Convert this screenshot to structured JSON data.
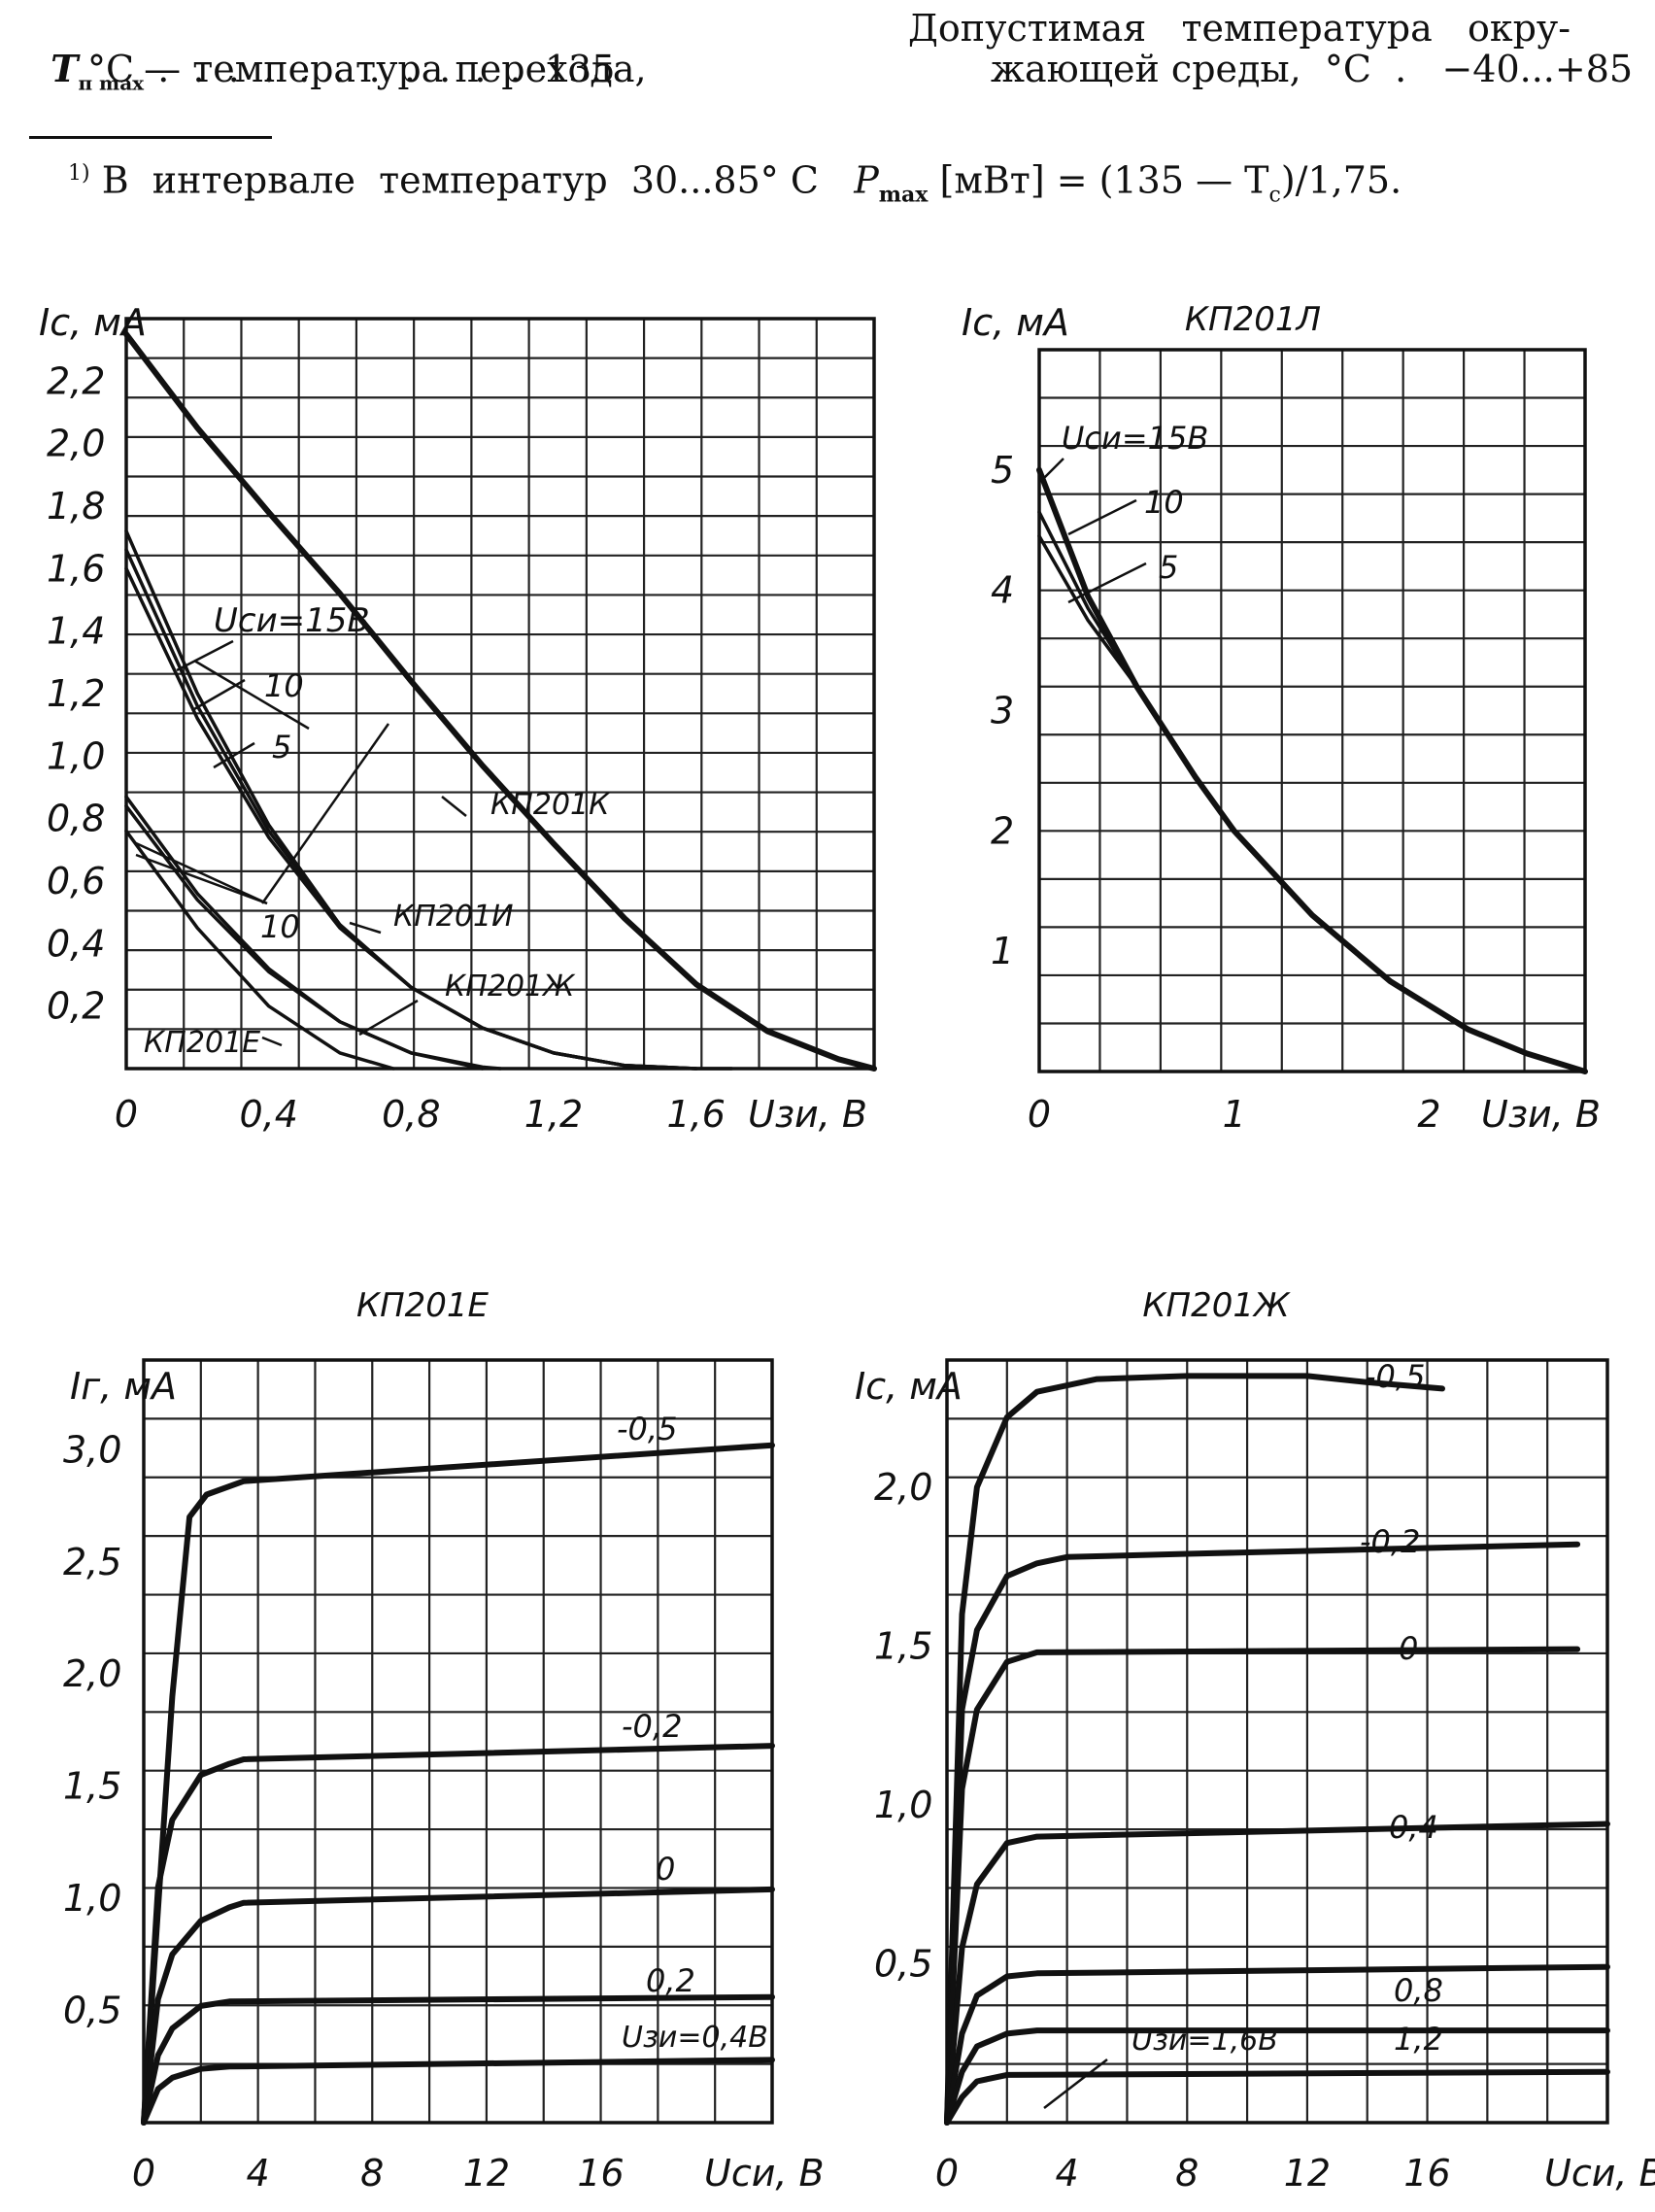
{
  "header": {
    "line1_left_sym": "T",
    "line1_left_sub": "п max",
    "line1_left_text": "— температура перехода,",
    "line2_left_text": "°С  .  .  .  .  .  .  .  .  .  .  .  135",
    "line1_right_text": "Допустимая   температура   окру-",
    "line2_right_text": "жающей среды,  °С  .   −40...+85",
    "footnote_mark": "1)",
    "footnote_text": "В  интервале  температур  30...85° С",
    "footnote_formula": "P",
    "footnote_formula_sub": "max",
    "footnote_formula_rest": " [мВт] = (135 — T",
    "footnote_formula_sub2": "с",
    "footnote_formula_end": ")/1,75."
  },
  "chart_data": [
    {
      "id": "transfer_KEZHIK",
      "type": "line",
      "title": "",
      "ylabel": "I_c, мА",
      "xlabel": "U_зи, В",
      "xlim": [
        0,
        2.1
      ],
      "ylim": [
        0,
        2.4
      ],
      "xticks": [
        "0",
        "0,4",
        "0,8",
        "1,2",
        "1,6"
      ],
      "xtick_values": [
        0,
        0.4,
        0.8,
        1.2,
        1.6
      ],
      "yticks": [
        "0,2",
        "0,4",
        "0,6",
        "0,8",
        "1,0",
        "1,2",
        "1,4",
        "1,6",
        "1,8",
        "2,0",
        "2,2"
      ],
      "ytick_values": [
        0.2,
        0.4,
        0.6,
        0.8,
        1.0,
        1.2,
        1.4,
        1.6,
        1.8,
        2.0,
        2.2
      ],
      "grid": true,
      "series": [
        {
          "name": "КП201К",
          "x": [
            0,
            0.2,
            0.4,
            0.6,
            0.8,
            1.0,
            1.2,
            1.4,
            1.6,
            1.8,
            2.0,
            2.1
          ],
          "y": [
            2.35,
            2.05,
            1.78,
            1.52,
            1.24,
            0.97,
            0.72,
            0.48,
            0.27,
            0.12,
            0.03,
            0.0
          ]
        },
        {
          "name": "КП201И U_си=15В",
          "x": [
            0,
            0.2,
            0.4,
            0.6,
            0.8,
            1.0,
            1.2,
            1.4,
            1.6,
            1.7
          ],
          "y": [
            1.72,
            1.2,
            0.78,
            0.46,
            0.26,
            0.13,
            0.05,
            0.01,
            0.0,
            0.0
          ]
        },
        {
          "name": "КП201И U_си=10",
          "x": [
            0,
            0.2,
            0.4,
            0.6,
            0.8,
            1.0,
            1.2,
            1.4,
            1.6
          ],
          "y": [
            1.66,
            1.16,
            0.76,
            0.46,
            0.26,
            0.13,
            0.05,
            0.01,
            0.0
          ]
        },
        {
          "name": "КП201И U_си=5",
          "x": [
            0,
            0.2,
            0.4,
            0.6,
            0.8,
            1.0,
            1.2,
            1.4,
            1.6
          ],
          "y": [
            1.6,
            1.12,
            0.74,
            0.45,
            0.26,
            0.13,
            0.05,
            0.01,
            0.0
          ]
        },
        {
          "name": "КП201Ж",
          "x": [
            0,
            0.2,
            0.4,
            0.6,
            0.8,
            1.0,
            1.05
          ],
          "y": [
            0.87,
            0.56,
            0.32,
            0.15,
            0.05,
            0.005,
            0.0
          ]
        },
        {
          "name": "КП201Ж U_си=10",
          "x": [
            0,
            0.2,
            0.4,
            0.6,
            0.8,
            1.0
          ],
          "y": [
            0.84,
            0.54,
            0.31,
            0.15,
            0.05,
            0.0
          ]
        },
        {
          "name": "КП201Е",
          "x": [
            0,
            0.2,
            0.4,
            0.6,
            0.75
          ],
          "y": [
            0.76,
            0.45,
            0.2,
            0.05,
            0.0
          ]
        }
      ],
      "annotations": [
        "U_си=15В",
        "10",
        "5",
        "10",
        "КП201К",
        "КП201И",
        "КП201Ж",
        "КП201Е"
      ]
    },
    {
      "id": "transfer_L",
      "type": "line",
      "title": "КП201Л",
      "ylabel": "I_c, мА",
      "xlabel": "U_зи, В",
      "xlim": [
        0,
        2.8
      ],
      "ylim": [
        0,
        6
      ],
      "xticks": [
        "0",
        "1",
        "2"
      ],
      "xtick_values": [
        0,
        1,
        2
      ],
      "yticks": [
        "1",
        "2",
        "3",
        "4",
        "5"
      ],
      "ytick_values": [
        1,
        2,
        3,
        4,
        5
      ],
      "grid": true,
      "series": [
        {
          "name": "U_си=15В",
          "x": [
            0,
            0.25,
            0.5,
            0.8,
            1.0,
            1.4,
            1.8,
            2.2,
            2.5,
            2.8
          ],
          "y": [
            5.0,
            3.95,
            3.2,
            2.45,
            2.0,
            1.3,
            0.75,
            0.35,
            0.15,
            0.0
          ]
        },
        {
          "name": "10",
          "x": [
            0,
            0.25,
            0.5
          ],
          "y": [
            4.65,
            3.85,
            3.2
          ]
        },
        {
          "name": "5",
          "x": [
            0,
            0.25,
            0.5
          ],
          "y": [
            4.45,
            3.75,
            3.2
          ]
        }
      ],
      "annotations": [
        "U_си=15В",
        "10",
        "5"
      ]
    },
    {
      "id": "output_E",
      "type": "line",
      "title": "КП201Е",
      "ylabel": "I_г, мА",
      "xlabel": "U_си, В",
      "xlim": [
        0,
        22
      ],
      "ylim": [
        0,
        3.4
      ],
      "xticks": [
        "0",
        "4",
        "8",
        "12",
        "16"
      ],
      "xtick_values": [
        0,
        4,
        8,
        12,
        16
      ],
      "yticks": [
        "0,5",
        "1,0",
        "1,5",
        "2,0",
        "2,5",
        "3,0"
      ],
      "ytick_values": [
        0.5,
        1.0,
        1.5,
        2.0,
        2.5,
        3.0
      ],
      "grid": true,
      "series": [
        {
          "name": "-0,5",
          "x": [
            0,
            1,
            1.6,
            2.2,
            3.5,
            22
          ],
          "y": [
            0,
            1.9,
            2.7,
            2.8,
            2.86,
            3.02
          ]
        },
        {
          "name": "-0,2",
          "x": [
            0,
            0.5,
            1,
            2,
            3,
            3.5,
            22
          ],
          "y": [
            0,
            1.05,
            1.35,
            1.55,
            1.6,
            1.62,
            1.68
          ]
        },
        {
          "name": "0",
          "x": [
            0,
            0.5,
            1,
            2,
            3,
            3.5,
            22
          ],
          "y": [
            0,
            0.55,
            0.75,
            0.9,
            0.96,
            0.98,
            1.04
          ]
        },
        {
          "name": "0,2",
          "x": [
            0,
            0.5,
            1,
            2,
            3,
            22
          ],
          "y": [
            0,
            0.3,
            0.42,
            0.52,
            0.54,
            0.56
          ]
        },
        {
          "name": "U_зи=0,4В",
          "x": [
            0,
            0.5,
            1,
            2,
            3,
            22
          ],
          "y": [
            0,
            0.15,
            0.2,
            0.24,
            0.25,
            0.28
          ]
        }
      ],
      "annotations": [
        "-0,5",
        "-0,2",
        "0",
        "0,2",
        "U_зи=0,4В"
      ]
    },
    {
      "id": "output_ZH",
      "type": "line",
      "title": "КП201Ж",
      "ylabel": "I_c, мА",
      "xlabel": "U_си, В",
      "xlim": [
        0,
        22
      ],
      "ylim": [
        0,
        2.4
      ],
      "xticks": [
        "0",
        "4",
        "8",
        "12",
        "16"
      ],
      "xtick_values": [
        0,
        4,
        8,
        12,
        16
      ],
      "yticks": [
        "0,5",
        "1,0",
        "1,5",
        "2,0"
      ],
      "ytick_values": [
        0.5,
        1.0,
        1.5,
        2.0
      ],
      "grid": true,
      "series": [
        {
          "name": "-0,5",
          "x": [
            0,
            0.5,
            1,
            2,
            3,
            5,
            8,
            12,
            14,
            16.5
          ],
          "y": [
            0,
            1.6,
            2.0,
            2.22,
            2.3,
            2.34,
            2.35,
            2.35,
            2.33,
            2.31
          ]
        },
        {
          "name": "-0,2",
          "x": [
            0,
            0.5,
            1,
            2,
            3,
            4,
            8,
            21
          ],
          "y": [
            0,
            1.3,
            1.55,
            1.72,
            1.76,
            1.78,
            1.79,
            1.82
          ]
        },
        {
          "name": "0",
          "x": [
            0,
            0.5,
            1,
            2,
            3,
            21
          ],
          "y": [
            0,
            1.05,
            1.3,
            1.45,
            1.48,
            1.49
          ]
        },
        {
          "name": "0,4",
          "x": [
            0,
            0.5,
            1,
            2,
            3,
            22
          ],
          "y": [
            0,
            0.55,
            0.75,
            0.88,
            0.9,
            0.94
          ]
        },
        {
          "name": "0,8",
          "x": [
            0,
            0.5,
            1,
            2,
            3,
            22
          ],
          "y": [
            0,
            0.28,
            0.4,
            0.46,
            0.47,
            0.49
          ]
        },
        {
          "name": "1,2",
          "x": [
            0,
            0.5,
            1,
            2,
            3,
            22
          ],
          "y": [
            0,
            0.16,
            0.24,
            0.28,
            0.29,
            0.29
          ]
        },
        {
          "name": "U_зи=1,6В",
          "x": [
            0,
            0.5,
            1,
            2,
            22
          ],
          "y": [
            0,
            0.08,
            0.13,
            0.15,
            0.16
          ]
        }
      ],
      "annotations": [
        "-0,5",
        "-0,2",
        "0",
        "0,4",
        "0,8",
        "1,2",
        "U_зи=1,6В"
      ]
    }
  ]
}
